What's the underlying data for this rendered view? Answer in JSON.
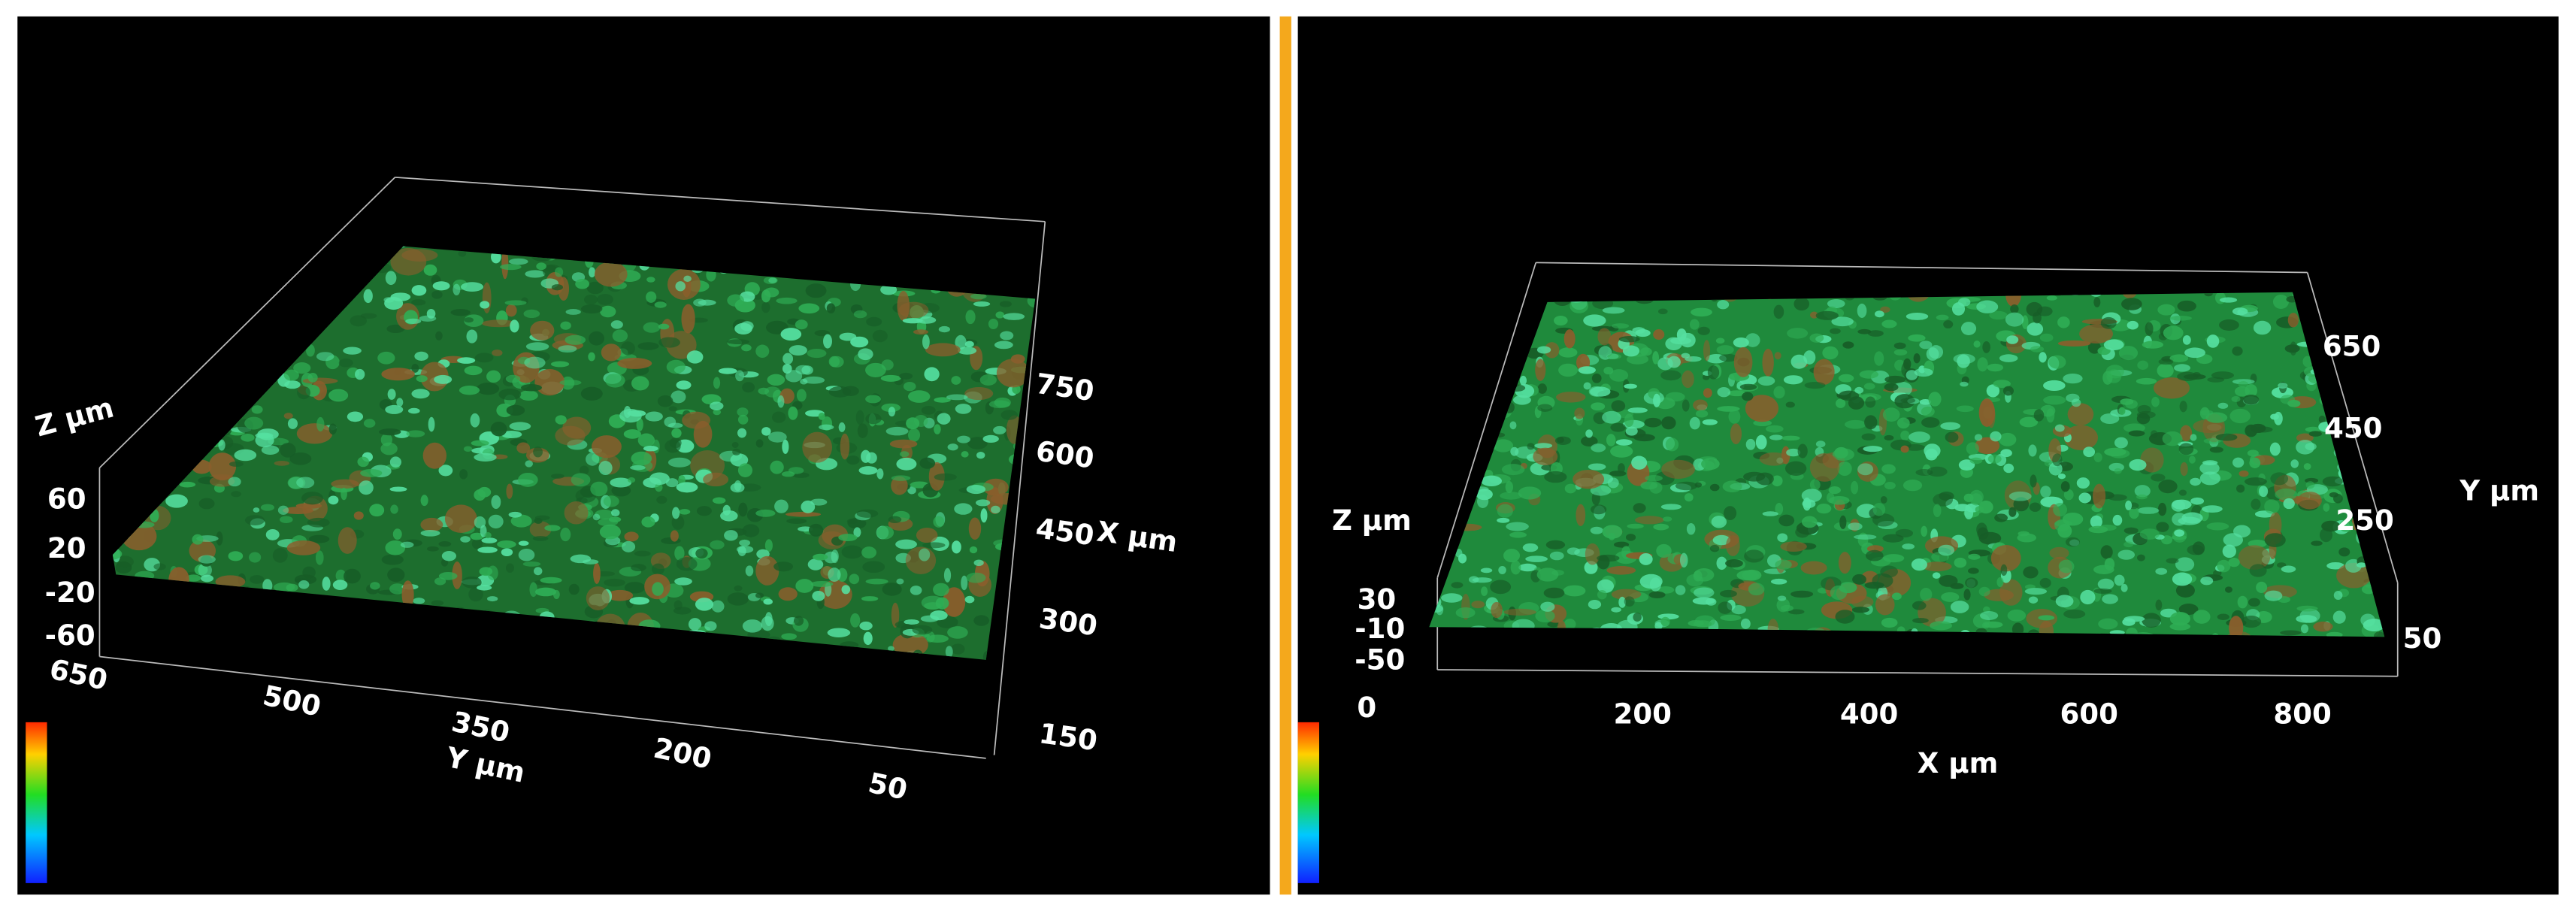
{
  "panels": [
    {
      "z_axis": {
        "title": "Z µm",
        "ticks": [
          "60",
          "20",
          "-20",
          "-60"
        ]
      },
      "y_axis": {
        "title": "Y µm",
        "ticks": [
          "650",
          "500",
          "350",
          "200",
          "50"
        ]
      },
      "x_axis": {
        "title": "X µm",
        "ticks": [
          "750",
          "600",
          "450",
          "300",
          "150"
        ]
      }
    },
    {
      "z_axis": {
        "title": "Z µm",
        "ticks": [
          "30",
          "-10",
          "-50"
        ]
      },
      "x_axis": {
        "title": "X µm",
        "ticks": [
          "0",
          "200",
          "400",
          "600",
          "800"
        ]
      },
      "y_axis": {
        "title": "Y µm",
        "ticks": [
          "650",
          "450",
          "250",
          "50"
        ]
      }
    }
  ]
}
